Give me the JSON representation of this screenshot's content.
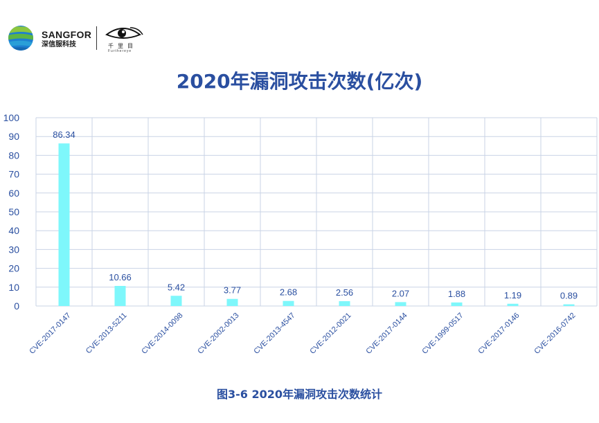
{
  "brand": {
    "name": "SANGFOR",
    "subtitle": "深信服科技",
    "partner_caption": "千里目",
    "partner_sub": "Furthereye"
  },
  "chart_data": {
    "type": "bar",
    "title": "2020年漏洞攻击次数(亿次)",
    "categories": [
      "CVE-2017-0147",
      "CVE-2013-5211",
      "CVE-2014-0098",
      "CVE-2002-0013",
      "CVE-2013-4547",
      "CVE-2012-0021",
      "CVE-2017-0144",
      "CVE-1999-0517",
      "CVE-2017-0146",
      "CVE-2016-0742"
    ],
    "values": [
      86.34,
      10.66,
      5.42,
      3.77,
      2.68,
      2.56,
      2.07,
      1.88,
      1.19,
      0.89
    ],
    "value_labels": [
      "86.34",
      "10.66",
      "5.42",
      "3.77",
      "2.68",
      "2.56",
      "2.07",
      "1.88",
      "1.19",
      "0.89"
    ],
    "y_ticks": [
      "0",
      "10",
      "20",
      "30",
      "40",
      "50",
      "60",
      "70",
      "80",
      "90",
      "100"
    ],
    "ylim": [
      0,
      100
    ],
    "grid": true,
    "bar_color": "#7ef7fb",
    "label_color": "#2a4fa0"
  },
  "caption": "图3-6  2020年漏洞攻击次数统计"
}
